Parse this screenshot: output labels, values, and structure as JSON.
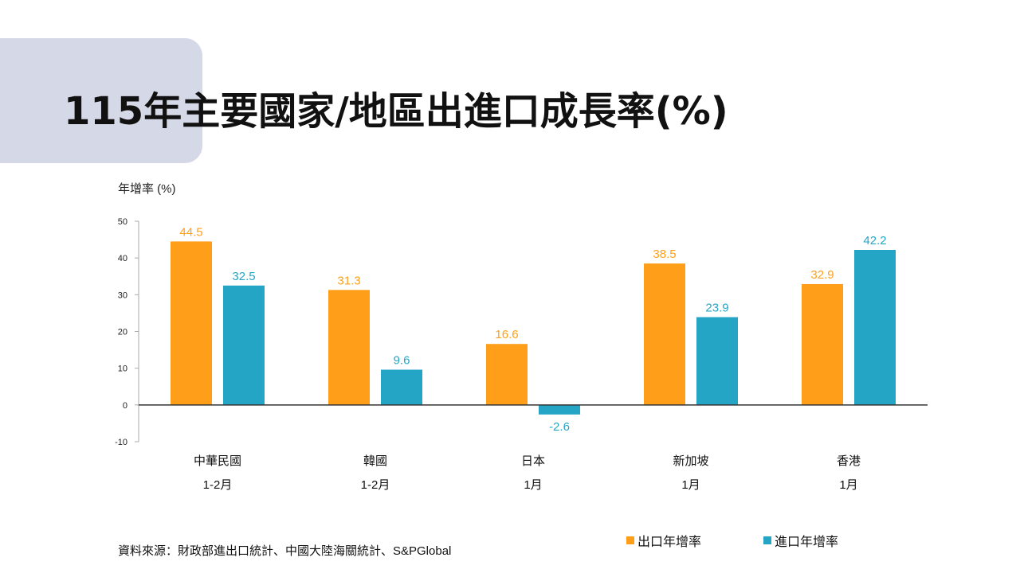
{
  "title": "115年主要國家/地區出進口成長率(%)",
  "source": "資料來源：財政部進出口統計、中國大陸海關統計、S&PGlobal",
  "chart_data": {
    "type": "bar",
    "title": "115年主要國家/地區出進口成長率(%)",
    "ylabel": "年增率 (%)",
    "xlabel": "",
    "ylim": [
      -10,
      50
    ],
    "yticks": [
      50,
      40,
      30,
      20,
      10,
      0,
      -10
    ],
    "categories": [
      "中華民國",
      "韓國",
      "日本",
      "新加坡",
      "香港"
    ],
    "periods": [
      "1-2月",
      "1-2月",
      "1月",
      "1月",
      "1月"
    ],
    "series": [
      {
        "name": "出口年增率",
        "color": "#ff9f19",
        "values": [
          44.5,
          31.3,
          16.6,
          38.5,
          32.9
        ]
      },
      {
        "name": "進口年增率",
        "color": "#25a5c6",
        "values": [
          32.5,
          9.6,
          -2.6,
          23.9,
          42.2
        ]
      }
    ],
    "legend": "bottom-right",
    "grid": false
  }
}
